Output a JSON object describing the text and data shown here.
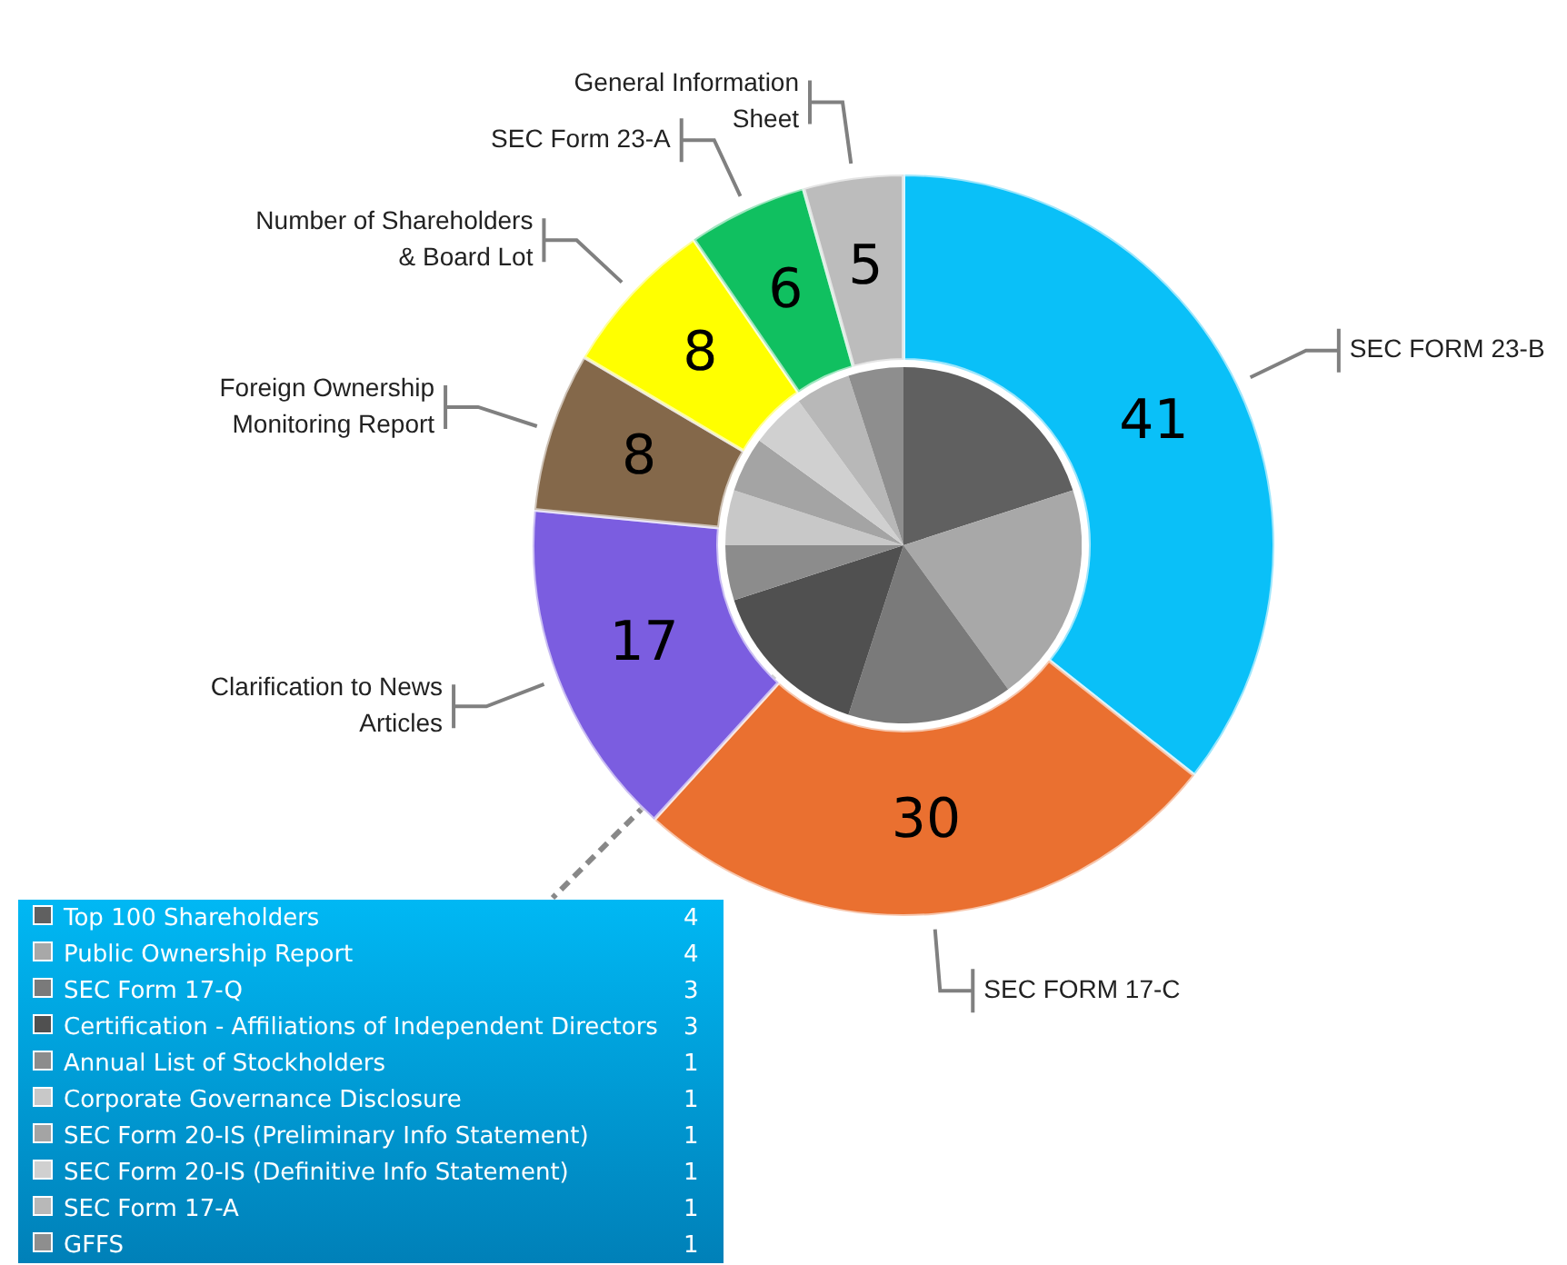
{
  "chart_data": [
    {
      "type": "donut",
      "categories": [
        "SEC FORM 23-B",
        "SEC FORM 17-C",
        "Clarification to News Articles",
        "Foreign Ownership Monitoring Report",
        "Number of Shareholders & Board Lot",
        "SEC Form 23-A",
        "General Information Sheet"
      ],
      "values": [
        41,
        30,
        17,
        8,
        8,
        6,
        5
      ],
      "colors": [
        "#0ac0f8",
        "#ea7030",
        "#7b5de0",
        "#84684a",
        "#ffff00",
        "#10c060",
        "#bcbcbc"
      ],
      "data_labels": true,
      "legend": false
    },
    {
      "type": "pie",
      "categories": [
        "Top 100  Shareholders",
        "Public Ownership Report",
        "SEC Form 17-Q",
        "Certification - Affiliations of Independent Directors",
        "Annual List of Stockholders",
        "Corporate Governance Disclosure",
        "SEC Form 20-IS (Preliminary Info Statement)",
        "SEC Form 20-IS (Definitive Info Statement)",
        "SEC Form 17-A",
        "GFFS"
      ],
      "values": [
        4,
        4,
        3,
        3,
        1,
        1,
        1,
        1,
        1,
        1
      ],
      "colors": [
        "#606060",
        "#a8a8a8",
        "#7a7a7a",
        "#505050",
        "#8c8c8c",
        "#c8c8c8",
        "#a4a4a4",
        "#d0d0d0",
        "#b8b8b8",
        "#8e8e8e"
      ],
      "data_labels": true,
      "legend": "bottom left"
    }
  ]
}
